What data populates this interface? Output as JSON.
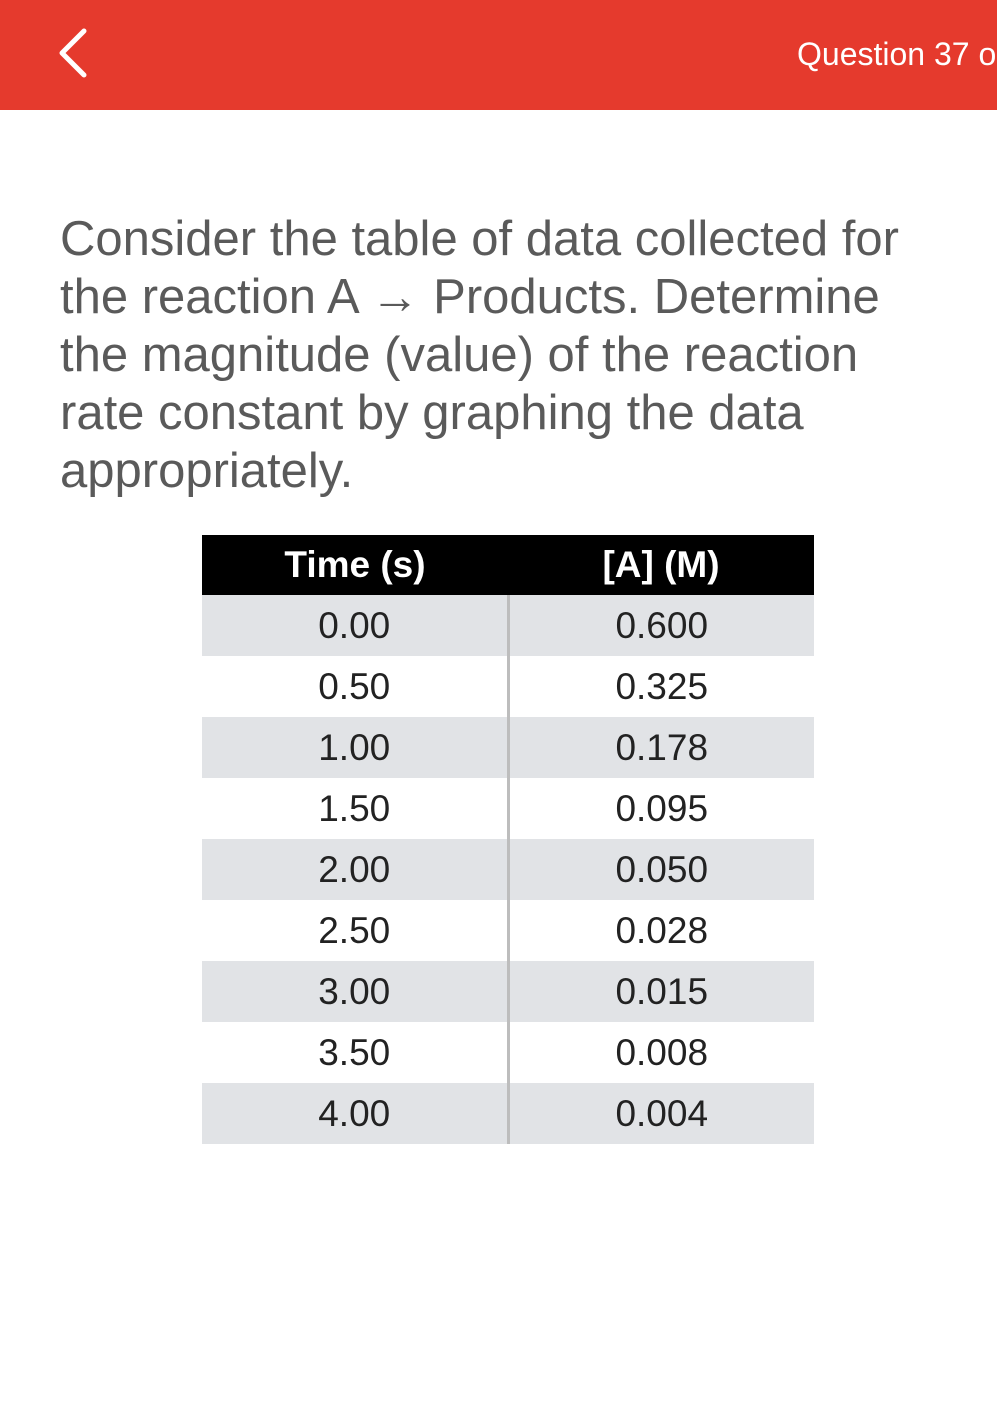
{
  "header": {
    "title": "Question 37 o"
  },
  "question": {
    "text": "Consider the table of data collected for the reaction A → Products. Determine the magnitude (value) of the reaction rate constant by graphing the data appropriately."
  },
  "table": {
    "header": [
      "Time (s)",
      "[A] (M)"
    ],
    "rows": [
      [
        "0.00",
        "0.600"
      ],
      [
        "0.50",
        "0.325"
      ],
      [
        "1.00",
        "0.178"
      ],
      [
        "1.50",
        "0.095"
      ],
      [
        "2.00",
        "0.050"
      ],
      [
        "2.50",
        "0.028"
      ],
      [
        "3.00",
        "0.015"
      ],
      [
        "3.50",
        "0.008"
      ],
      [
        "4.00",
        "0.004"
      ]
    ]
  }
}
